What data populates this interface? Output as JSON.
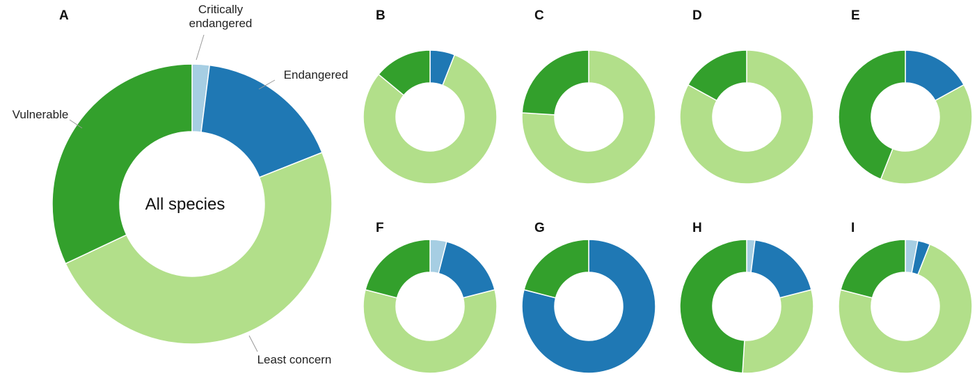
{
  "chart_data": [
    {
      "type": "donut",
      "title": "A",
      "center_label": "All species",
      "categories": [
        "Critically endangered",
        "Endangered",
        "Least concern",
        "Vulnerable"
      ],
      "values": [
        2,
        17,
        49,
        32
      ],
      "colors": [
        "#a6cee3",
        "#1f78b4",
        "#b2df8a",
        "#33a02c"
      ]
    },
    {
      "type": "donut",
      "title": "B",
      "values": [
        6,
        80,
        14
      ],
      "colors": [
        "#1f78b4",
        "#b2df8a",
        "#33a02c"
      ]
    },
    {
      "type": "donut",
      "title": "C",
      "values": [
        76,
        24
      ],
      "colors": [
        "#b2df8a",
        "#33a02c"
      ]
    },
    {
      "type": "donut",
      "title": "D",
      "values": [
        83,
        17
      ],
      "colors": [
        "#b2df8a",
        "#33a02c"
      ]
    },
    {
      "type": "donut",
      "title": "E",
      "values": [
        17,
        39,
        44
      ],
      "colors": [
        "#1f78b4",
        "#b2df8a",
        "#33a02c"
      ]
    },
    {
      "type": "donut",
      "title": "F",
      "values": [
        4,
        17,
        58,
        21
      ],
      "colors": [
        "#a6cee3",
        "#1f78b4",
        "#b2df8a",
        "#33a02c"
      ]
    },
    {
      "type": "donut",
      "title": "G",
      "values": [
        79,
        21
      ],
      "colors": [
        "#1f78b4",
        "#33a02c"
      ]
    },
    {
      "type": "donut",
      "title": "H",
      "values": [
        2,
        19,
        30,
        49
      ],
      "colors": [
        "#a6cee3",
        "#1f78b4",
        "#b2df8a",
        "#33a02c"
      ]
    },
    {
      "type": "donut",
      "title": "I",
      "values": [
        3,
        3,
        73,
        21
      ],
      "colors": [
        "#a6cee3",
        "#1f78b4",
        "#b2df8a",
        "#33a02c"
      ]
    }
  ]
}
